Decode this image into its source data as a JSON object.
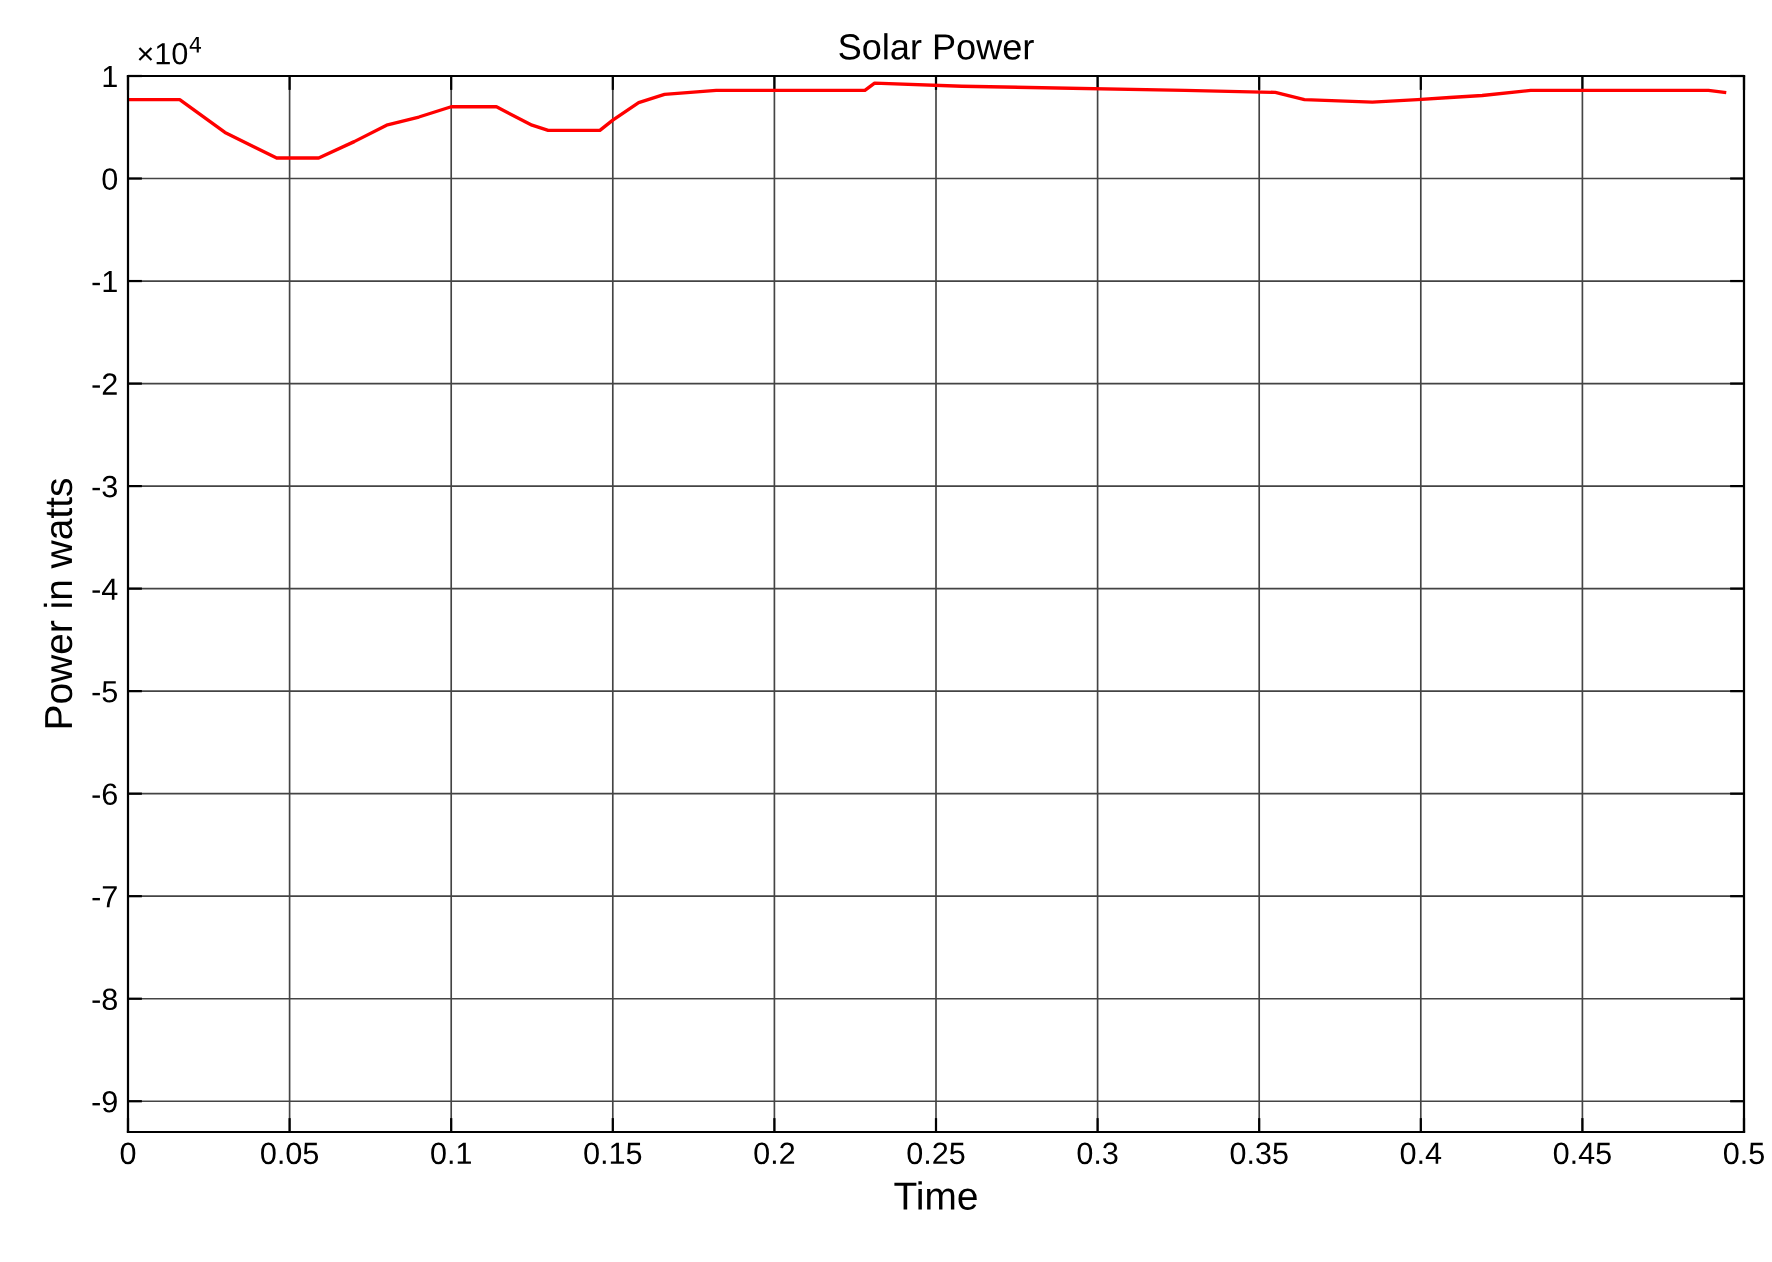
{
  "chart_data": {
    "type": "line",
    "title": "Solar Power",
    "xlabel": "Time",
    "ylabel": "Power in watts",
    "annotations": [
      "×10$^{4}$"
    ],
    "x": [
      0,
      0.016,
      0.03,
      0.046,
      0.059,
      0.07,
      0.08,
      0.09,
      0.1,
      0.114,
      0.125,
      0.13,
      0.146,
      0.15,
      0.158,
      0.166,
      0.182,
      0.228,
      0.231,
      0.258,
      0.327,
      0.355,
      0.364,
      0.385,
      0.399,
      0.409,
      0.419,
      0.434,
      0.489,
      0.494
    ],
    "series": [
      {
        "color": "#ff0000",
        "values": [
          0.77,
          0.77,
          0.45,
          0.2,
          0.2,
          0.36,
          0.52,
          0.6,
          0.7,
          0.7,
          0.52,
          0.47,
          0.47,
          0.57,
          0.74,
          0.82,
          0.86,
          0.86,
          0.93,
          0.9,
          0.86,
          0.84,
          0.77,
          0.745,
          0.77,
          0.79,
          0.81,
          0.86,
          0.86,
          0.84
        ]
      }
    ],
    "xlim": [
      0,
      0.5
    ],
    "xticks": [
      0,
      0.05,
      0.1,
      0.15,
      0.2,
      0.25,
      0.3,
      0.35,
      0.4,
      0.45,
      0.5
    ],
    "ylim": [
      -9.3,
      1
    ],
    "yticks": [
      -9,
      -8,
      -7,
      -6,
      -5,
      -4,
      -3,
      -2,
      -1,
      0,
      1
    ],
    "grid": true,
    "legend": false,
    "marker": "none",
    "line_style": "solid"
  }
}
